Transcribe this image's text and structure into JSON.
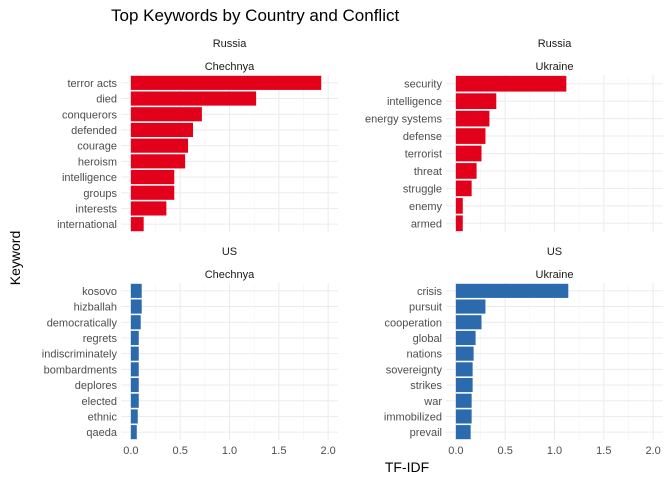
{
  "chart_data": {
    "type": "bar",
    "orientation": "horizontal",
    "title": "Top Keywords by Country and Conflict",
    "xlabel": "TF-IDF",
    "ylabel": "Keyword",
    "xlim": [
      0,
      2.0
    ],
    "xticks": [
      "0.0",
      "0.5",
      "1.0",
      "1.5",
      "2.0"
    ],
    "grid": true,
    "legend": "none",
    "colors": {
      "Russia": "#e3001b",
      "US": "#2b6bad"
    },
    "panels": [
      {
        "country": "Russia",
        "conflict": "Chechnya",
        "categories": [
          "terror acts",
          "died",
          "conquerors",
          "defended",
          "courage",
          "heroism",
          "intelligence",
          "groups",
          "interests",
          "international"
        ],
        "values": [
          1.93,
          1.27,
          0.72,
          0.63,
          0.58,
          0.55,
          0.44,
          0.44,
          0.36,
          0.13
        ]
      },
      {
        "country": "Russia",
        "conflict": "Ukraine",
        "categories": [
          "security",
          "intelligence",
          "energy systems",
          "defense",
          "terrorist",
          "threat",
          "struggle",
          "enemy",
          "armed"
        ],
        "values": [
          1.12,
          0.41,
          0.34,
          0.3,
          0.26,
          0.21,
          0.16,
          0.07,
          0.07
        ]
      },
      {
        "country": "US",
        "conflict": "Chechnya",
        "categories": [
          "kosovo",
          "hizballah",
          "democratically",
          "regrets",
          "indiscriminately",
          "bombardments",
          "deplores",
          "elected",
          "ethnic",
          "qaeda"
        ],
        "values": [
          0.11,
          0.11,
          0.1,
          0.08,
          0.08,
          0.08,
          0.08,
          0.08,
          0.07,
          0.06
        ]
      },
      {
        "country": "US",
        "conflict": "Ukraine",
        "categories": [
          "crisis",
          "pursuit",
          "cooperation",
          "global",
          "nations",
          "sovereignty",
          "strikes",
          "war",
          "immobilized",
          "prevail"
        ],
        "values": [
          1.14,
          0.3,
          0.26,
          0.2,
          0.18,
          0.17,
          0.17,
          0.16,
          0.16,
          0.15
        ]
      }
    ]
  }
}
